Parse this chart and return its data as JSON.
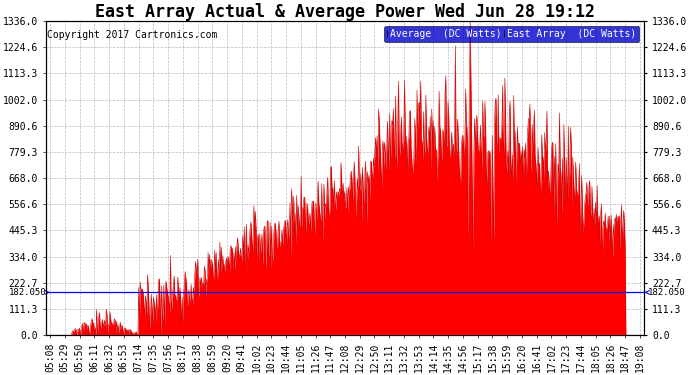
{
  "title": "East Array Actual & Average Power Wed Jun 28 19:12",
  "copyright": "Copyright 2017 Cartronics.com",
  "yticks": [
    0.0,
    111.3,
    222.7,
    334.0,
    445.3,
    556.6,
    668.0,
    779.3,
    890.6,
    1002.0,
    1113.3,
    1224.6,
    1336.0
  ],
  "ymax": 1336.0,
  "ymin": 0.0,
  "hline_value": 182.05,
  "legend_avg_label": "Average  (DC Watts)",
  "legend_east_label": "East Array  (DC Watts)",
  "legend_avg_color": "#0000cc",
  "legend_east_color": "#cc0000",
  "fill_color": "#ff0000",
  "line_color": "#cc0000",
  "background_color": "#ffffff",
  "grid_color": "#bbbbbb",
  "title_fontsize": 12,
  "copyright_fontsize": 7,
  "tick_fontsize": 7,
  "x_tick_labels": [
    "05:08",
    "05:29",
    "05:50",
    "06:11",
    "06:32",
    "06:53",
    "07:14",
    "07:35",
    "07:56",
    "08:17",
    "08:38",
    "08:59",
    "09:20",
    "09:41",
    "10:02",
    "10:23",
    "10:44",
    "11:05",
    "11:26",
    "11:47",
    "12:08",
    "12:29",
    "12:50",
    "13:11",
    "13:32",
    "13:53",
    "14:14",
    "14:35",
    "14:56",
    "15:17",
    "15:38",
    "15:59",
    "16:20",
    "16:41",
    "17:02",
    "17:23",
    "17:44",
    "18:05",
    "18:26",
    "18:47",
    "19:08"
  ]
}
